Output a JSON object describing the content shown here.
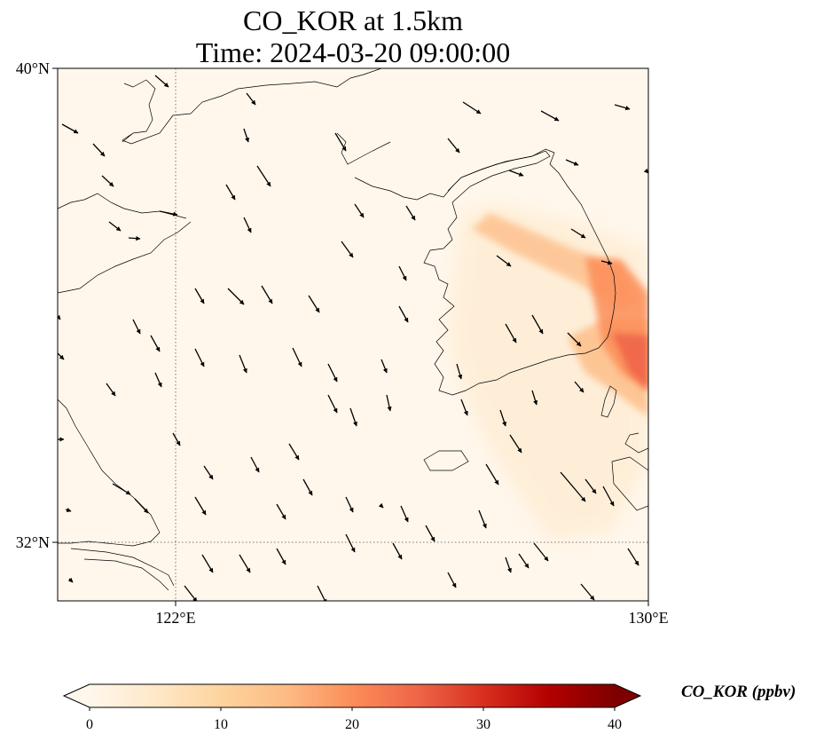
{
  "title": {
    "line1": "CO_KOR at 1.5km",
    "line2": "Time: 2024-03-20 09:00:00"
  },
  "axes": {
    "lat_labels": [
      "40°N",
      "32°N"
    ],
    "lon_labels": [
      "122°E",
      "130°E"
    ]
  },
  "colorbar": {
    "label": "CO_KOR (ppbv)",
    "ticks": [
      "0",
      "10",
      "20",
      "30",
      "40"
    ],
    "range": [
      0,
      40
    ],
    "extend": "both",
    "colormap": "OrRd",
    "colors": [
      "#fff7ec",
      "#fee8c8",
      "#fdd49e",
      "#fdbb84",
      "#fc8d59",
      "#ef6548",
      "#d7301f",
      "#b30000",
      "#7f0000"
    ]
  },
  "map": {
    "lon_range": [
      120,
      130
    ],
    "lat_range": [
      31,
      40
    ],
    "gridlines": "dotted",
    "vector_field": "wind arrows (prevailing northwesterly)"
  }
}
